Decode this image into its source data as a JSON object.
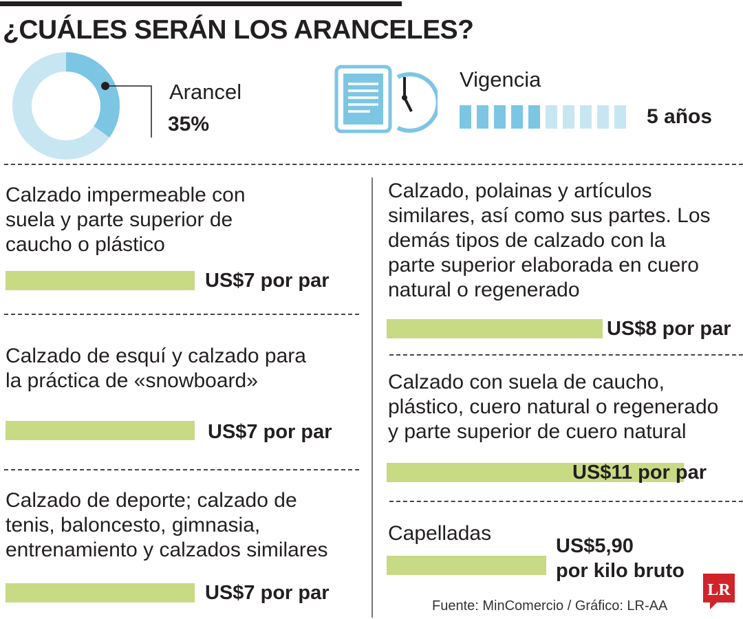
{
  "headline": "¿CUÁLES SERÁN LOS ARANCELES?",
  "arancel": {
    "label": "Arancel",
    "value_text": "35%",
    "fraction": 0.35
  },
  "vigencia": {
    "label": "Vigencia",
    "value_text": "5 años",
    "blocks_filled": 5,
    "blocks_total": 10
  },
  "colors": {
    "accent_blue": "#7cc6e4",
    "light_blue": "#c8e6f2",
    "bar_green": "#c8da84",
    "logo_red": "#d0232a"
  },
  "icons": [
    "document-clock-icon",
    "lr-logo-icon"
  ],
  "chart_data": {
    "type": "bar",
    "categories": [
      "Calzado impermeable con suela y parte superior de caucho o plástico",
      "Calzado de esquí y calzado para la práctica de «snowboard»",
      "Calzado de deporte; calzado de tenis, baloncesto, gimnasia, entrenamiento y calzados similares",
      "Calzado, polainas y artículos similares, así como sus partes. Los demás tipos de calzado con la parte superior elaborada en cuero natural o regenerado",
      "Calzado con suela de caucho, plástico, cuero natural o regenerado y parte superior de cuero natural",
      "Capelladas"
    ],
    "values": [
      7,
      7,
      7,
      8,
      11,
      5.9
    ],
    "series": [
      {
        "values": [
          7,
          7,
          7,
          8,
          11,
          5.9
        ]
      }
    ]
  },
  "items": [
    {
      "lines": [
        "Calzado impermeable con",
        "suela y parte superior de",
        "caucho o plástico"
      ],
      "price": "US$7 por par"
    },
    {
      "lines": [
        "Calzado de esquí y calzado para",
        "la práctica de «snowboard»"
      ],
      "price": "US$7 por par"
    },
    {
      "lines": [
        "Calzado de deporte; calzado de",
        "tenis, baloncesto, gimnasia,",
        "entrenamiento y calzados similares"
      ],
      "price": "US$7 por par"
    },
    {
      "lines": [
        "Calzado, polainas y artículos",
        "similares, así como sus partes. Los",
        "demás tipos de calzado con la",
        "parte superior elaborada en cuero",
        "natural o regenerado"
      ],
      "price": "US$8 por par"
    },
    {
      "lines": [
        "Calzado con suela de caucho,",
        "plástico, cuero natural o regenerado",
        "y parte superior de cuero natural"
      ],
      "price": "US$11 por par"
    },
    {
      "lines": [
        "Capelladas"
      ],
      "price_lines": [
        "US$5,90",
        "por kilo bruto"
      ]
    }
  ],
  "source": "Fuente: MinComercio / Gráfico: LR-AA",
  "logo_text": "LR"
}
